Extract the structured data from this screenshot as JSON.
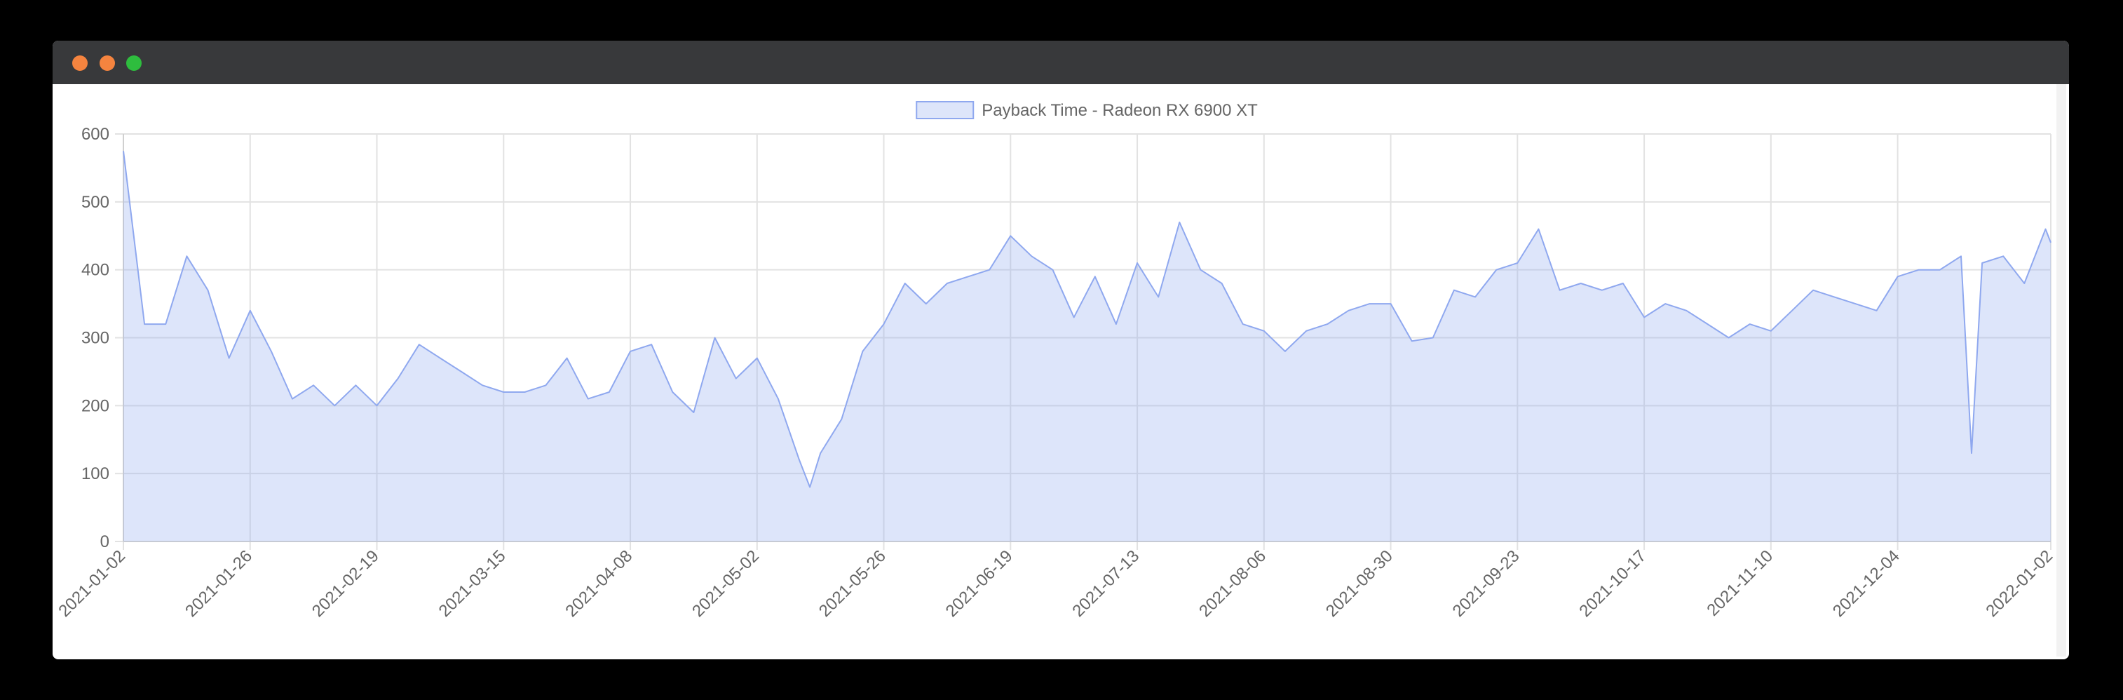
{
  "chart_data": {
    "type": "area",
    "x": [
      "2021-01-02",
      "2021-01-06",
      "2021-01-10",
      "2021-01-14",
      "2021-01-18",
      "2021-01-22",
      "2021-01-26",
      "2021-01-30",
      "2021-02-03",
      "2021-02-07",
      "2021-02-11",
      "2021-02-15",
      "2021-02-19",
      "2021-02-23",
      "2021-02-27",
      "2021-03-03",
      "2021-03-07",
      "2021-03-11",
      "2021-03-15",
      "2021-03-19",
      "2021-03-23",
      "2021-03-27",
      "2021-03-31",
      "2021-04-04",
      "2021-04-08",
      "2021-04-12",
      "2021-04-16",
      "2021-04-20",
      "2021-04-24",
      "2021-04-28",
      "2021-05-02",
      "2021-05-06",
      "2021-05-10",
      "2021-05-12",
      "2021-05-14",
      "2021-05-18",
      "2021-05-22",
      "2021-05-26",
      "2021-05-30",
      "2021-06-03",
      "2021-06-07",
      "2021-06-11",
      "2021-06-15",
      "2021-06-19",
      "2021-06-23",
      "2021-06-27",
      "2021-07-01",
      "2021-07-05",
      "2021-07-09",
      "2021-07-13",
      "2021-07-17",
      "2021-07-21",
      "2021-07-25",
      "2021-07-29",
      "2021-08-02",
      "2021-08-06",
      "2021-08-10",
      "2021-08-14",
      "2021-08-18",
      "2021-08-22",
      "2021-08-26",
      "2021-08-30",
      "2021-09-03",
      "2021-09-07",
      "2021-09-11",
      "2021-09-15",
      "2021-09-19",
      "2021-09-23",
      "2021-09-27",
      "2021-10-01",
      "2021-10-05",
      "2021-10-09",
      "2021-10-13",
      "2021-10-17",
      "2021-10-21",
      "2021-10-25",
      "2021-10-29",
      "2021-11-02",
      "2021-11-06",
      "2021-11-10",
      "2021-11-14",
      "2021-11-18",
      "2021-11-22",
      "2021-11-26",
      "2021-11-30",
      "2021-12-04",
      "2021-12-08",
      "2021-12-12",
      "2021-12-16",
      "2021-12-18",
      "2021-12-20",
      "2021-12-24",
      "2021-12-28",
      "2022-01-01",
      "2022-01-02"
    ],
    "series": [
      {
        "name": "Payback Time - Radeon RX 6900 XT",
        "color": "#8fa8ef",
        "values": [
          575,
          320,
          320,
          420,
          370,
          270,
          340,
          280,
          210,
          230,
          200,
          230,
          200,
          240,
          290,
          270,
          250,
          230,
          220,
          220,
          230,
          270,
          210,
          220,
          280,
          290,
          220,
          190,
          300,
          240,
          270,
          210,
          120,
          80,
          130,
          180,
          280,
          320,
          380,
          350,
          380,
          390,
          400,
          450,
          420,
          400,
          330,
          390,
          320,
          410,
          360,
          470,
          400,
          380,
          320,
          310,
          280,
          310,
          320,
          340,
          350,
          350,
          295,
          300,
          370,
          360,
          400,
          410,
          460,
          370,
          380,
          370,
          380,
          330,
          350,
          340,
          320,
          300,
          320,
          310,
          340,
          370,
          360,
          350,
          340,
          390,
          400,
          400,
          420,
          130,
          410,
          420,
          380,
          460,
          440
        ]
      }
    ],
    "xlim": [
      "2021-01-02",
      "2022-01-02"
    ],
    "xticks": [
      "2021-01-02",
      "2021-01-26",
      "2021-02-19",
      "2021-03-15",
      "2021-04-08",
      "2021-05-02",
      "2021-05-26",
      "2021-06-19",
      "2021-07-13",
      "2021-08-06",
      "2021-08-30",
      "2021-09-23",
      "2021-10-17",
      "2021-11-10",
      "2021-12-04",
      "2022-01-02"
    ],
    "ylim": [
      0,
      600
    ],
    "yticks": [
      0,
      100,
      200,
      300,
      400,
      500,
      600
    ],
    "grid": true,
    "legend": "top"
  }
}
